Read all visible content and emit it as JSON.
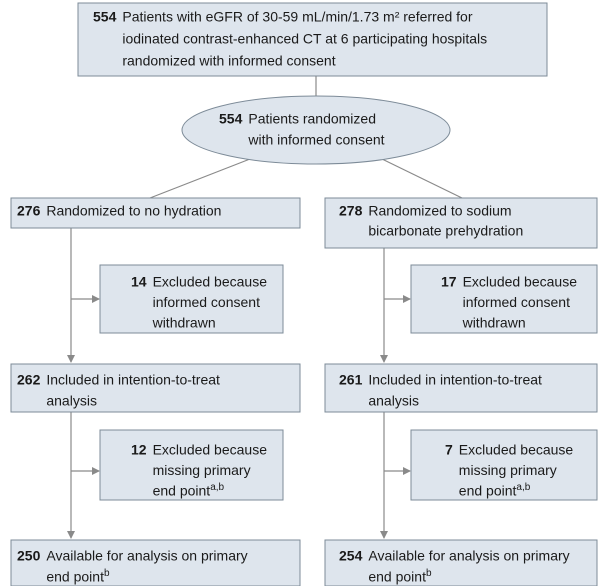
{
  "top": {
    "count": 554,
    "lines": [
      "Patients with eGFR of 30-59 mL/min/1.73 m² referred for",
      "iodinated contrast-enhanced CT at 6 participating hospitals",
      "randomized with informed consent"
    ]
  },
  "randomized": {
    "count": 554,
    "lines": [
      "Patients randomized",
      "with informed consent"
    ]
  },
  "arms": [
    {
      "allocation": {
        "count": 276,
        "lines": [
          "Randomized to no hydration"
        ]
      },
      "excluded_consent": {
        "count": 14,
        "lines": [
          "Excluded because",
          "informed consent",
          "withdrawn"
        ]
      },
      "itt": {
        "count": 262,
        "lines": [
          "Included in intention-to-treat",
          "analysis"
        ]
      },
      "excluded_endpoint": {
        "count": 12,
        "lines": [
          "Excluded because",
          "missing primary",
          "end point"
        ],
        "superscript": "a,b"
      },
      "analyzed": {
        "count": 250,
        "lines": [
          "Available for analysis on primary",
          "end point"
        ],
        "superscript": "b"
      }
    },
    {
      "allocation": {
        "count": 278,
        "lines": [
          "Randomized to sodium",
          "bicarbonate prehydration"
        ]
      },
      "excluded_consent": {
        "count": 17,
        "lines": [
          "Excluded because",
          "informed consent",
          "withdrawn"
        ]
      },
      "itt": {
        "count": 261,
        "lines": [
          "Included in intention-to-treat",
          "analysis"
        ]
      },
      "excluded_endpoint": {
        "count": 7,
        "lines": [
          "Excluded because",
          "missing primary",
          "end point"
        ],
        "superscript": "a,b"
      },
      "analyzed": {
        "count": 254,
        "lines": [
          "Available for analysis on primary",
          "end point"
        ],
        "superscript": "b"
      }
    }
  ]
}
